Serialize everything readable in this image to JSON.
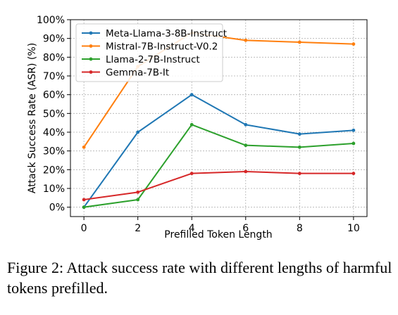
{
  "chart_data": {
    "type": "line",
    "xlabel": "Prefilled Token Length",
    "ylabel": "Attack Success Rate (ASR) (%)",
    "x": [
      0,
      2,
      4,
      6,
      8,
      10
    ],
    "xlim": [
      -0.5,
      10.5
    ],
    "ylim": [
      -5,
      100
    ],
    "x_ticks": [
      "0",
      "2",
      "4",
      "6",
      "8",
      "10"
    ],
    "y_ticks": [
      "0%",
      "10%",
      "20%",
      "30%",
      "40%",
      "50%",
      "60%",
      "70%",
      "80%",
      "90%",
      "100%"
    ],
    "grid": true,
    "legend_position": "top-left",
    "series": [
      {
        "name": "Meta-Llama-3-8B-Instruct",
        "color": "#1f77b4",
        "values": [
          0,
          40,
          60,
          44,
          39,
          41
        ]
      },
      {
        "name": "Mistral-7B-Instruct-V0.2",
        "color": "#ff7f0e",
        "values": [
          32,
          75,
          93,
          89,
          88,
          87
        ]
      },
      {
        "name": "Llama-2-7B-Instruct",
        "color": "#2ca02c",
        "values": [
          0,
          4,
          44,
          33,
          32,
          34
        ]
      },
      {
        "name": "Gemma-7B-It",
        "color": "#d62728",
        "values": [
          4,
          8,
          18,
          19,
          18,
          18
        ]
      }
    ]
  },
  "caption": "Figure 2: Attack success rate with different lengths of harmful tokens prefilled."
}
